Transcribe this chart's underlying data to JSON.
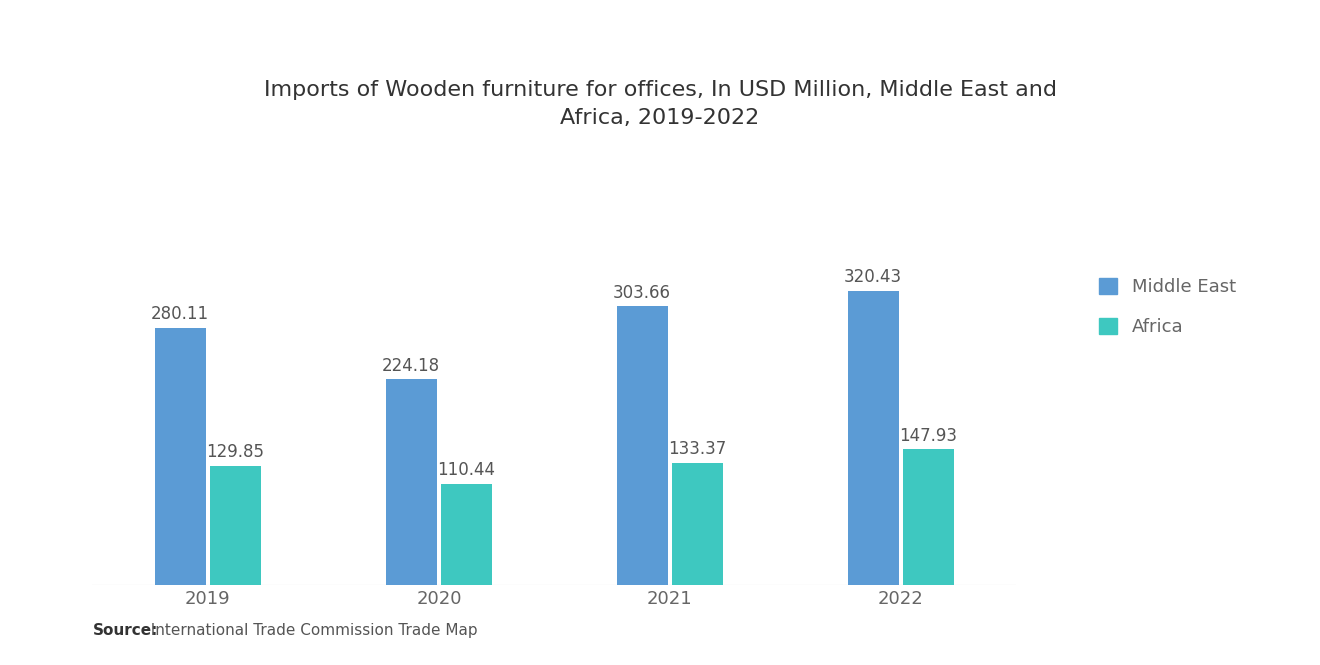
{
  "title": "Imports of Wooden furniture for offices, In USD Million, Middle East and\nAfrica, 2019-2022",
  "years": [
    "2019",
    "2020",
    "2021",
    "2022"
  ],
  "middle_east": [
    280.11,
    224.18,
    303.66,
    320.43
  ],
  "africa": [
    129.85,
    110.44,
    133.37,
    147.93
  ],
  "color_middle_east": "#5B9BD5",
  "color_africa": "#3EC8C0",
  "background_color": "#FFFFFF",
  "label_middle_east": "Middle East",
  "label_africa": "Africa",
  "source_bold": "Source:",
  "source_rest": "  International Trade Commission Trade Map",
  "bar_width": 0.22,
  "title_fontsize": 16,
  "legend_fontsize": 13,
  "tick_fontsize": 13,
  "annotation_fontsize": 12,
  "source_fontsize": 11,
  "ylim": [
    0,
    420
  ]
}
